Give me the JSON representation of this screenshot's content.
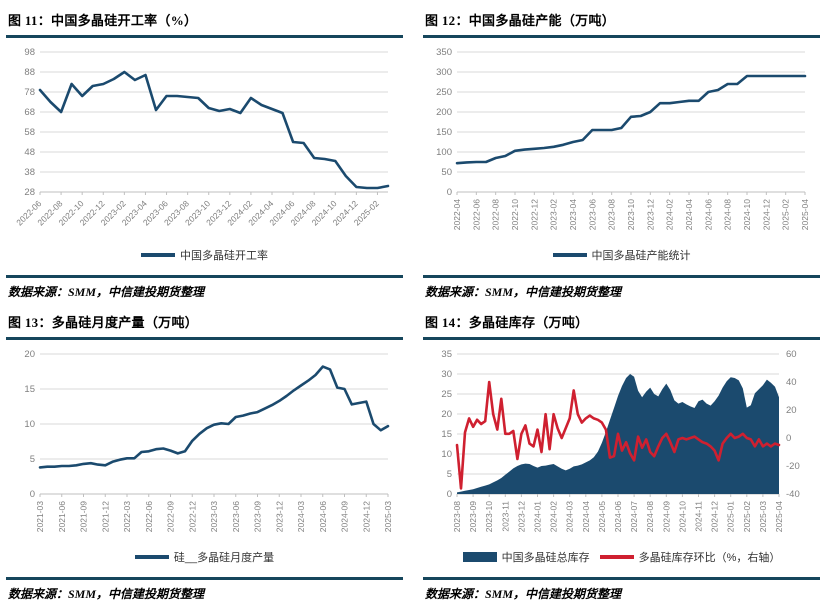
{
  "colors": {
    "primary": "#1b4a6e",
    "secondary": "#cf2030",
    "rule": "#16465c",
    "grid": "#d9d9d9",
    "axis": "#bfbfbf",
    "tick_text": "#7f7f7f"
  },
  "chart_data": [
    {
      "id": "fig11",
      "type": "line",
      "title": "图 11：中国多晶硅开工率（%）",
      "source": "数据来源：SMM，中信建投期货整理",
      "left_axis": {
        "min": 28,
        "max": 98,
        "step": 10
      },
      "x_labels": [
        "2022-06",
        "2022-08",
        "2022-10",
        "2022-12",
        "2023-02",
        "2023-04",
        "2023-06",
        "2023-08",
        "2023-10",
        "2023-12",
        "2024-02",
        "2024-04",
        "2024-06",
        "2024-08",
        "2024-10",
        "2024-12",
        "2025-02"
      ],
      "label_every": 2,
      "label_rotate": 45,
      "series": [
        {
          "name": "中国多晶硅开工率",
          "type": "line",
          "axis": "left",
          "color": "#1b4a6e",
          "values": [
            79,
            73,
            68,
            82,
            76,
            81,
            82,
            84.5,
            88,
            84,
            86.5,
            69,
            76,
            76,
            75.5,
            75,
            70,
            68.5,
            69.5,
            67.5,
            75,
            71.5,
            69.5,
            67.5,
            53,
            52.5,
            45,
            44.5,
            43.5,
            36,
            30.5,
            30,
            30,
            31
          ]
        }
      ]
    },
    {
      "id": "fig12",
      "type": "line",
      "title": "图 12：中国多晶硅产能（万吨）",
      "source": "数据来源：SMM，中信建投期货整理",
      "left_axis": {
        "min": 0,
        "max": 350,
        "step": 50
      },
      "x_labels": [
        "2022-04",
        "2022-06",
        "2022-08",
        "2022-10",
        "2022-12",
        "2023-02",
        "2023-04",
        "2023-06",
        "2023-08",
        "2023-10",
        "2023-12",
        "2024-02",
        "2024-04",
        "2024-06",
        "2024-08",
        "2024-10",
        "2024-12",
        "2025-02",
        "2025-04"
      ],
      "label_every": 2,
      "label_rotate": 90,
      "series": [
        {
          "name": "中国多晶硅产能统计",
          "type": "line",
          "axis": "left",
          "color": "#1b4a6e",
          "values": [
            72,
            74,
            75,
            75,
            85,
            90,
            103,
            106,
            108,
            110,
            113,
            118,
            125,
            130,
            155,
            155,
            155,
            160,
            188,
            190,
            200,
            222,
            222,
            225,
            228,
            228,
            250,
            255,
            270,
            270,
            290,
            290,
            290,
            290,
            290,
            290,
            290
          ]
        }
      ]
    },
    {
      "id": "fig13",
      "type": "line",
      "title": "图 13：多晶硅月度产量（万吨）",
      "source": "数据来源：SMM，中信建投期货整理",
      "left_axis": {
        "min": 0,
        "max": 20,
        "step": 5
      },
      "x_labels": [
        "2021-03",
        "2021-06",
        "2021-09",
        "2021-12",
        "2022-03",
        "2022-06",
        "2022-09",
        "2022-12",
        "2023-03",
        "2023-06",
        "2023-09",
        "2023-12",
        "2024-03",
        "2024-06",
        "2024-09",
        "2024-12",
        "2025-03"
      ],
      "label_every": 3,
      "label_rotate": 90,
      "series": [
        {
          "name": "硅__多晶硅月度产量",
          "type": "line",
          "axis": "left",
          "color": "#1b4a6e",
          "values": [
            3.8,
            3.9,
            3.9,
            4.0,
            4.0,
            4.1,
            4.3,
            4.4,
            4.2,
            4.1,
            4.6,
            4.9,
            5.1,
            5.1,
            6.0,
            6.1,
            6.4,
            6.5,
            6.2,
            5.8,
            6.1,
            7.6,
            8.6,
            9.4,
            9.9,
            10.1,
            10.0,
            11.0,
            11.2,
            11.5,
            11.7,
            12.2,
            12.7,
            13.3,
            14.0,
            14.8,
            15.5,
            16.2,
            17.0,
            18.2,
            17.8,
            15.2,
            15.0,
            12.8,
            13.0,
            13.2,
            10.0,
            9.1,
            9.7
          ]
        }
      ]
    },
    {
      "id": "fig14",
      "type": "area+line",
      "title": "图 14：多晶硅库存（万吨）",
      "source": "数据来源：SMM，中信建投期货整理",
      "left_axis": {
        "min": 0,
        "max": 35,
        "step": 5
      },
      "right_axis": {
        "min": -40,
        "max": 60,
        "step": 20
      },
      "x_labels": [
        "2023-08",
        "2023-09",
        "2023-10",
        "2023-11",
        "2023-12",
        "2024-01",
        "2024-02",
        "2024-03",
        "2024-04",
        "2024-05",
        "2024-06",
        "2024-07",
        "2024-08",
        "2024-09",
        "2024-10",
        "2024-11",
        "2024-12",
        "2025-01",
        "2025-02",
        "2025-03",
        "2025-04"
      ],
      "label_every": 4,
      "label_rotate": 90,
      "series": [
        {
          "name": "中国多晶硅总库存",
          "type": "area",
          "axis": "left",
          "color": "#1b4a6e",
          "values": [
            0.4,
            0.6,
            0.8,
            1.0,
            1.2,
            1.5,
            1.8,
            2.1,
            2.4,
            2.9,
            3.4,
            4.0,
            4.8,
            5.6,
            6.4,
            7.0,
            7.4,
            7.6,
            7.5,
            7.0,
            6.6,
            7.0,
            7.1,
            7.3,
            7.5,
            6.9,
            6.3,
            5.9,
            6.3,
            6.9,
            7.1,
            7.4,
            7.9,
            8.4,
            9.2,
            10.6,
            12.8,
            15.5,
            18.5,
            21.5,
            24.5,
            27.0,
            29.0,
            30.0,
            29.3,
            25.8,
            24.2,
            25.6,
            26.6,
            25.0,
            24.4,
            26.2,
            27.6,
            26.0,
            23.4,
            22.6,
            23.0,
            22.4,
            21.9,
            21.5,
            23.2,
            23.6,
            22.6,
            22.1,
            23.2,
            24.6,
            26.6,
            28.2,
            29.2,
            29.0,
            28.4,
            26.4,
            21.6,
            22.2,
            25.2,
            26.2,
            27.2,
            28.6,
            27.8,
            26.8,
            24.2
          ]
        },
        {
          "name": "多晶硅库存环比（%，右轴）",
          "type": "line",
          "axis": "right",
          "color": "#cf2030",
          "values": [
            -5,
            -36,
            4,
            14,
            8,
            13,
            10,
            12,
            40,
            17,
            6,
            28,
            3,
            3,
            5,
            -15,
            3,
            9,
            -4,
            -6,
            6,
            -10,
            17,
            -8,
            17,
            7,
            0,
            7,
            14,
            34,
            17,
            11,
            14,
            16,
            14,
            13,
            11,
            6,
            -14,
            -13,
            3,
            -9,
            -3,
            -11,
            -16,
            1,
            -7,
            -1,
            -10,
            -13,
            -6,
            0,
            3,
            -3,
            -10,
            -1,
            0,
            -1,
            0,
            1,
            -1,
            -3,
            -4,
            -6,
            -9,
            -16,
            -4,
            0,
            3,
            0,
            1,
            3,
            0,
            -1,
            -6,
            -1,
            -6,
            -4,
            -6,
            -4,
            -5
          ]
        }
      ]
    }
  ]
}
